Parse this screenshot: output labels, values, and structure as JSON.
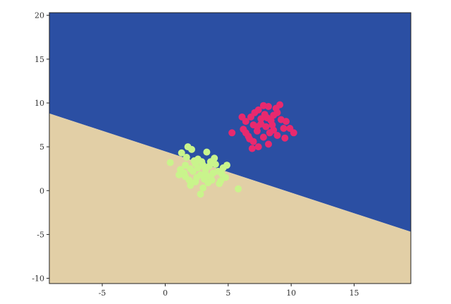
{
  "chart_data": {
    "type": "scatter",
    "title": "",
    "xlabel": "",
    "ylabel": "",
    "xlim": [
      -9.2,
      19.5
    ],
    "ylim": [
      -10.6,
      20.3
    ],
    "xticks": [
      -5,
      0,
      5,
      10,
      15
    ],
    "yticks": [
      -10,
      -5,
      0,
      5,
      10,
      15,
      20
    ],
    "grid": false,
    "legend": "none",
    "decision_boundary": {
      "points": [
        [
          -9.2,
          8.8
        ],
        [
          19.5,
          -4.7
        ]
      ],
      "above_color": "#2B4FA3",
      "below_color": "#E2CFA6"
    },
    "series": [
      {
        "color": "#E8296E",
        "points": [
          [
            8.2,
            9.6
          ],
          [
            7.4,
            9.2
          ],
          [
            6.8,
            8.4
          ],
          [
            7.6,
            8.2
          ],
          [
            8.9,
            8.9
          ],
          [
            8.4,
            8.0
          ],
          [
            9.2,
            8.1
          ],
          [
            7.0,
            7.5
          ],
          [
            8.0,
            7.3
          ],
          [
            9.4,
            7.1
          ],
          [
            6.2,
            7.0
          ],
          [
            7.3,
            6.8
          ],
          [
            8.6,
            6.9
          ],
          [
            9.9,
            7.1
          ],
          [
            6.6,
            6.2
          ],
          [
            7.8,
            6.1
          ],
          [
            8.9,
            6.3
          ],
          [
            5.3,
            6.6
          ],
          [
            7.0,
            5.6
          ],
          [
            8.2,
            5.3
          ],
          [
            7.4,
            5.0
          ],
          [
            6.9,
            4.8
          ],
          [
            8.6,
            8.6
          ],
          [
            7.8,
            9.7
          ],
          [
            8.8,
            9.4
          ],
          [
            7.1,
            8.9
          ],
          [
            6.4,
            7.9
          ],
          [
            9.6,
            7.9
          ],
          [
            8.5,
            7.5
          ],
          [
            7.6,
            7.6
          ],
          [
            10.2,
            6.6
          ],
          [
            6.1,
            8.4
          ],
          [
            9.1,
            9.8
          ],
          [
            7.9,
            8.7
          ],
          [
            8.3,
            6.6
          ],
          [
            6.7,
            5.9
          ],
          [
            9.5,
            6.0
          ],
          [
            7.3,
            7.3
          ],
          [
            8.1,
            8.3
          ],
          [
            6.4,
            6.6
          ]
        ]
      },
      {
        "color": "#C9F48C",
        "points": [
          [
            1.8,
            5.0
          ],
          [
            2.1,
            4.7
          ],
          [
            1.3,
            4.3
          ],
          [
            3.3,
            4.4
          ],
          [
            2.6,
            3.6
          ],
          [
            3.6,
            3.3
          ],
          [
            0.4,
            3.2
          ],
          [
            1.6,
            2.9
          ],
          [
            2.4,
            3.1
          ],
          [
            3.0,
            2.9
          ],
          [
            4.0,
            3.0
          ],
          [
            4.6,
            2.6
          ],
          [
            1.2,
            2.4
          ],
          [
            2.2,
            2.2
          ],
          [
            3.2,
            2.4
          ],
          [
            4.2,
            2.2
          ],
          [
            2.8,
            1.8
          ],
          [
            3.6,
            1.6
          ],
          [
            1.6,
            1.6
          ],
          [
            4.8,
            1.5
          ],
          [
            2.4,
            1.0
          ],
          [
            3.4,
            0.9
          ],
          [
            2.0,
            0.6
          ],
          [
            4.3,
            0.8
          ],
          [
            3.0,
            0.3
          ],
          [
            5.8,
            0.2
          ],
          [
            2.8,
            -0.4
          ],
          [
            1.5,
            2.0
          ],
          [
            2.6,
            2.6
          ],
          [
            3.8,
            2.0
          ],
          [
            4.4,
            1.1
          ],
          [
            1.9,
            1.2
          ],
          [
            3.1,
            1.3
          ],
          [
            2.3,
            3.4
          ],
          [
            3.9,
            3.7
          ],
          [
            4.9,
            2.9
          ],
          [
            1.1,
            1.8
          ],
          [
            2.9,
            3.3
          ],
          [
            3.5,
            2.8
          ],
          [
            2.0,
            2.5
          ],
          [
            4.5,
            1.9
          ],
          [
            3.2,
            1.9
          ],
          [
            2.5,
            1.5
          ],
          [
            3.7,
            1.2
          ],
          [
            1.7,
            3.8
          ]
        ]
      }
    ]
  }
}
